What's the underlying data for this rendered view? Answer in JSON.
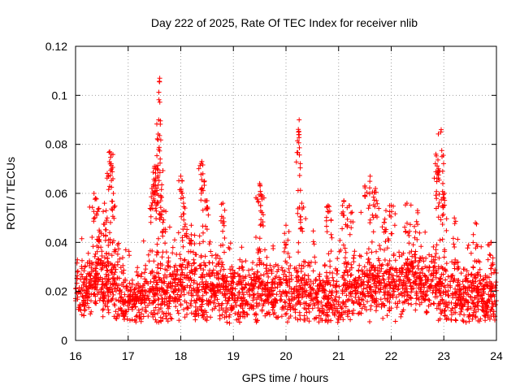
{
  "chart_data": {
    "type": "scatter",
    "title": "Day 222 of 2025, Rate Of TEC Index for receiver nlib",
    "xlabel": "GPS time / hours",
    "ylabel": "ROTI / TECUs",
    "xlim": [
      16,
      24
    ],
    "ylim": [
      0,
      0.12
    ],
    "x_ticks": [
      "16",
      "17",
      "18",
      "19",
      "20",
      "21",
      "22",
      "23",
      "24"
    ],
    "y_ticks": [
      "0",
      "0.02",
      "0.04",
      "0.06",
      "0.08",
      "0.1",
      "0.12"
    ],
    "grid": true,
    "marker": "+",
    "color": "#ff0000",
    "series": [
      {
        "name": "ROTI",
        "baseline": [
          [
            16.0,
            0.021
          ],
          [
            16.2,
            0.02
          ],
          [
            16.4,
            0.024
          ],
          [
            16.6,
            0.022
          ],
          [
            16.8,
            0.02
          ],
          [
            17.0,
            0.016
          ],
          [
            17.2,
            0.017
          ],
          [
            17.4,
            0.019
          ],
          [
            17.6,
            0.018
          ],
          [
            17.8,
            0.021
          ],
          [
            18.0,
            0.022
          ],
          [
            18.2,
            0.02
          ],
          [
            18.4,
            0.019
          ],
          [
            18.6,
            0.021
          ],
          [
            18.8,
            0.02
          ],
          [
            19.0,
            0.02
          ],
          [
            19.2,
            0.019
          ],
          [
            19.4,
            0.021
          ],
          [
            19.6,
            0.02
          ],
          [
            19.8,
            0.019
          ],
          [
            20.0,
            0.018
          ],
          [
            20.2,
            0.02
          ],
          [
            20.4,
            0.019
          ],
          [
            20.6,
            0.018
          ],
          [
            20.8,
            0.018
          ],
          [
            21.0,
            0.016
          ],
          [
            21.2,
            0.019
          ],
          [
            21.4,
            0.021
          ],
          [
            21.6,
            0.024
          ],
          [
            21.8,
            0.023
          ],
          [
            22.0,
            0.022
          ],
          [
            22.2,
            0.024
          ],
          [
            22.4,
            0.026
          ],
          [
            22.6,
            0.023
          ],
          [
            22.8,
            0.022
          ],
          [
            23.0,
            0.019
          ],
          [
            23.2,
            0.018
          ],
          [
            23.4,
            0.019
          ],
          [
            23.6,
            0.018
          ],
          [
            23.8,
            0.017
          ],
          [
            24.0,
            0.017
          ]
        ],
        "clusters": [
          [
            16.35,
            0.06
          ],
          [
            16.38,
            0.058
          ],
          [
            16.45,
            0.045
          ],
          [
            16.55,
            0.056
          ],
          [
            16.6,
            0.05
          ],
          [
            16.68,
            0.076
          ],
          [
            16.65,
            0.077
          ],
          [
            16.72,
            0.06
          ],
          [
            16.8,
            0.039
          ],
          [
            17.45,
            0.062
          ],
          [
            17.5,
            0.071
          ],
          [
            17.55,
            0.07
          ],
          [
            17.52,
            0.066
          ],
          [
            17.58,
            0.09
          ],
          [
            17.6,
            0.107
          ],
          [
            17.58,
            0.078
          ],
          [
            17.62,
            0.059
          ],
          [
            17.68,
            0.053
          ],
          [
            18.0,
            0.067
          ],
          [
            18.02,
            0.06
          ],
          [
            18.08,
            0.054
          ],
          [
            18.2,
            0.047
          ],
          [
            18.4,
            0.073
          ],
          [
            18.42,
            0.068
          ],
          [
            18.5,
            0.057
          ],
          [
            18.8,
            0.056
          ],
          [
            19.5,
            0.064
          ],
          [
            19.55,
            0.059
          ],
          [
            20.0,
            0.047
          ],
          [
            20.25,
            0.09
          ],
          [
            20.25,
            0.084
          ],
          [
            20.3,
            0.056
          ],
          [
            20.8,
            0.055
          ],
          [
            21.1,
            0.057
          ],
          [
            21.2,
            0.055
          ],
          [
            21.5,
            0.063
          ],
          [
            21.6,
            0.067
          ],
          [
            21.7,
            0.062
          ],
          [
            21.9,
            0.053
          ],
          [
            22.0,
            0.055
          ],
          [
            22.3,
            0.056
          ],
          [
            22.5,
            0.053
          ],
          [
            22.85,
            0.076
          ],
          [
            22.9,
            0.07
          ],
          [
            22.95,
            0.086
          ],
          [
            22.98,
            0.064
          ],
          [
            23.0,
            0.058
          ],
          [
            23.2,
            0.05
          ],
          [
            23.6,
            0.048
          ],
          [
            23.9,
            0.04
          ]
        ]
      }
    ]
  }
}
